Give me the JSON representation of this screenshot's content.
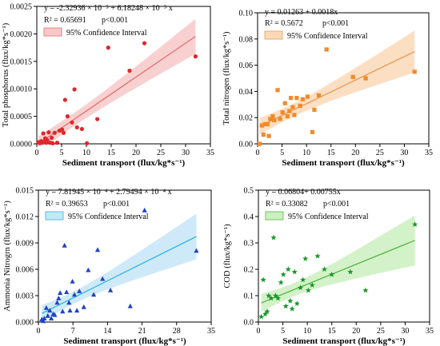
{
  "chart_data": [
    {
      "type": "scatter",
      "equation": "y = -2.32936 × 10⁻⁵ + 6.18248 × 10⁻⁵ x",
      "r2": "R² = 0.65691",
      "pvalue": "p<0.001",
      "ci_label": "95% Confidence Interval",
      "xlabel": "Sediment transport (flux/kg*s⁻¹)",
      "ylabel": "Total phosphorus (flux/kg*s⁻¹)",
      "xlim": [
        0,
        35
      ],
      "ylim": [
        0,
        0.0025
      ],
      "xticks": [
        0,
        5,
        10,
        15,
        20,
        25,
        30,
        35
      ],
      "yticks": [
        0.0,
        0.0005,
        0.001,
        0.0015,
        0.002,
        0.0025
      ],
      "ytick_labels": [
        "0.0000",
        "0.0005",
        "0.0010",
        "0.0015",
        "0.0020",
        "0.0025"
      ],
      "marker": "circle",
      "color": "#e0262a",
      "line_color": "#e07070",
      "band_color": "#f8c8c8",
      "fit": {
        "intercept": -2.32936e-05,
        "slope": 6.18248e-05
      },
      "ci_halfwidth": {
        "at_xmean": 0.00012,
        "at_xmax": 0.00032,
        "x_mean": 7
      },
      "x": [
        0.3,
        0.6,
        0.9,
        1.1,
        1.3,
        1.5,
        1.7,
        1.9,
        2.1,
        2.4,
        2.7,
        3.0,
        3.2,
        3.6,
        4.1,
        4.6,
        5.1,
        5.4,
        5.7,
        6.2,
        7.1,
        7.6,
        8.1,
        9.1,
        10.1,
        12.2,
        14.4,
        18.7,
        21.7,
        32.0
      ],
      "values": [
        3e-05,
        1e-05,
        5e-05,
        2e-05,
        0.00019,
        4e-05,
        0.0001,
        2e-05,
        7e-05,
        0.00021,
        2e-05,
        0.00011,
        1e-05,
        0.0002,
        2e-05,
        0.00024,
        0.00026,
        0.0002,
        0.0008,
        0.0005,
        0.00039,
        0.00099,
        0.0003,
        0.00027,
        1e-05,
        0.00045,
        0.00175,
        0.00133,
        0.00183,
        0.00159
      ]
    },
    {
      "type": "scatter",
      "equation": "y = 0.01263 + 0.0018x",
      "r2": "R² = 0.5672",
      "pvalue": "p<0.001",
      "ci_label": "95% Confidence Interval",
      "xlabel": "Sediment transport (flux/kg*s⁻¹)",
      "ylabel": "Total nitrogen (flux/kg*s⁻¹)",
      "xlim": [
        0,
        35
      ],
      "ylim": [
        0,
        0.1
      ],
      "xticks": [
        0,
        5,
        10,
        15,
        20,
        25,
        30,
        35
      ],
      "yticks": [
        0.0,
        0.02,
        0.04,
        0.06,
        0.08,
        0.1
      ],
      "ytick_labels": [
        "0.00",
        "0.02",
        "0.04",
        "0.06",
        "0.08",
        "0.10"
      ],
      "marker": "square",
      "color": "#f08a2a",
      "line_color": "#e79a55",
      "band_color": "#fbd9b8",
      "fit": {
        "intercept": 0.01263,
        "slope": 0.0018
      },
      "ci_halfwidth": {
        "at_xmean": 0.005,
        "at_xmax": 0.016,
        "x_mean": 7
      },
      "x": [
        0.4,
        0.9,
        1.2,
        1.5,
        2.0,
        2.3,
        2.6,
        3.1,
        3.4,
        4.1,
        4.6,
        5.1,
        5.6,
        6.1,
        6.5,
        6.8,
        7.2,
        7.5,
        8.0,
        8.7,
        9.2,
        10.2,
        11.2,
        11.6,
        12.5,
        14.1,
        19.5,
        22.1,
        32.1
      ],
      "values": [
        0.0,
        0.014,
        0.007,
        0.015,
        0.015,
        0.006,
        0.019,
        0.021,
        0.018,
        0.041,
        0.019,
        0.024,
        0.031,
        0.021,
        0.025,
        0.035,
        0.028,
        0.022,
        0.035,
        0.029,
        0.034,
        0.036,
        0.009,
        0.026,
        0.037,
        0.072,
        0.051,
        0.05,
        0.055
      ]
    },
    {
      "type": "scatter",
      "equation": "y = 7.81945 × 10⁻⁴ + 2.79494 × 10⁻⁴ x",
      "r2": "R² = 0.39653",
      "pvalue": "p<0.001",
      "ci_label": "95% Confidence Interval",
      "xlabel": "Sediment transport (flux/kg*s⁻¹)",
      "ylabel": "Ammonia Nitrogrn (flux/kg*s⁻¹)",
      "xlim": [
        0,
        35
      ],
      "ylim": [
        0,
        0.015
      ],
      "xticks": [
        0,
        7,
        14,
        21,
        28,
        35
      ],
      "yticks": [
        0.0,
        0.003,
        0.006,
        0.009,
        0.012,
        0.015
      ],
      "ytick_labels": [
        "0.000",
        "0.003",
        "0.006",
        "0.009",
        "0.012",
        "0.015"
      ],
      "marker": "triangle",
      "color": "#1d42c8",
      "line_color": "#35b4e0",
      "band_color": "#c6e6f7",
      "fit": {
        "intercept": 0.000781945,
        "slope": 0.000279494
      },
      "ci_halfwidth": {
        "at_xmean": 0.0007,
        "at_xmax": 0.0026,
        "x_mean": 7
      },
      "x": [
        0.7,
        1.0,
        1.2,
        1.6,
        1.9,
        2.3,
        2.6,
        3.0,
        3.3,
        3.8,
        4.1,
        4.4,
        4.9,
        5.3,
        5.7,
        6.2,
        6.4,
        6.9,
        7.3,
        7.8,
        8.3,
        9.2,
        10.1,
        11.2,
        12.0,
        13.0,
        14.6,
        18.6,
        21.5,
        32.0
      ],
      "values": [
        0.0003,
        0.0001,
        0.0004,
        0.0016,
        0.0007,
        0.0013,
        0.0004,
        0.0009,
        0.0008,
        0.0022,
        0.0027,
        0.0033,
        0.0012,
        0.0087,
        0.0034,
        0.0022,
        0.0013,
        0.0046,
        0.0031,
        0.0013,
        0.0035,
        0.0017,
        0.0059,
        0.0031,
        0.0082,
        0.0049,
        0.0036,
        0.0018,
        0.0127,
        0.0081
      ]
    },
    {
      "type": "scatter",
      "equation": "y = 0.06804+ 0.00755x",
      "r2": "R² = 0.33082",
      "pvalue": "p<0.001",
      "ci_label": "95% Confidence Interval",
      "xlabel": "Sediment transport (flux/kg*s⁻¹)",
      "ylabel": "COD (flux/kg*s⁻¹)",
      "xlim": [
        0,
        35
      ],
      "ylim": [
        0,
        0.5
      ],
      "xticks": [
        0,
        5,
        10,
        15,
        20,
        25,
        30,
        35
      ],
      "yticks": [
        0.0,
        0.1,
        0.2,
        0.3,
        0.4,
        0.5
      ],
      "ytick_labels": [
        "0.0",
        "0.1",
        "0.2",
        "0.3",
        "0.4",
        "0.5"
      ],
      "marker": "star",
      "color": "#16982a",
      "line_color": "#52b840",
      "band_color": "#cdf0c0",
      "fit": {
        "intercept": 0.06804,
        "slope": 0.00755
      },
      "ci_halfwidth": {
        "at_xmean": 0.025,
        "at_xmax": 0.095,
        "x_mean": 7
      },
      "x": [
        0.6,
        1.0,
        1.4,
        1.8,
        2.1,
        2.6,
        3.1,
        3.5,
        4.0,
        4.6,
        5.1,
        5.6,
        6.1,
        6.5,
        6.9,
        7.4,
        7.9,
        8.6,
        9.1,
        9.6,
        10.2,
        11.0,
        12.1,
        13.5,
        15.0,
        18.8,
        21.9,
        32.0
      ],
      "values": [
        0.02,
        0.16,
        0.03,
        0.04,
        0.1,
        0.09,
        0.32,
        0.1,
        0.09,
        0.15,
        0.18,
        0.06,
        0.2,
        0.08,
        0.05,
        0.19,
        0.07,
        0.13,
        0.16,
        0.24,
        0.12,
        0.14,
        0.25,
        0.2,
        0.18,
        0.19,
        0.12,
        0.37
      ]
    }
  ]
}
